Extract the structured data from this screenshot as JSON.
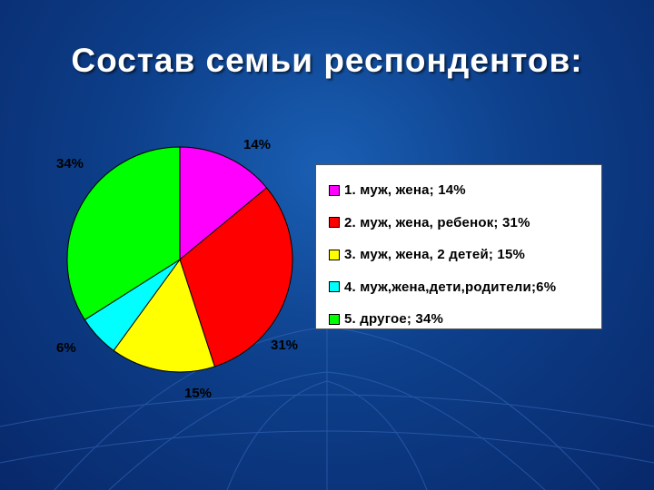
{
  "slide": {
    "title": "Состав семьи респондентов:"
  },
  "colors": {
    "background": "#0d3f8a",
    "magenta": "#ff00ff",
    "red": "#ff0000",
    "yellow": "#ffff00",
    "cyan": "#00ffff",
    "green": "#00ff00"
  },
  "chart_data": {
    "type": "pie",
    "title": "Состав семьи респондентов:",
    "legend_position": "right",
    "slices": [
      {
        "label": "1. муж, жена; 14%",
        "value": 14,
        "value_label": "14%",
        "color": "#ff00ff"
      },
      {
        "label": "2. муж, жена, ребенок; 31%",
        "value": 31,
        "value_label": "31%",
        "color": "#ff0000"
      },
      {
        "label": "3. муж, жена, 2 детей; 15%",
        "value": 15,
        "value_label": "15%",
        "color": "#ffff00"
      },
      {
        "label": "4. муж,жена,дети,родители;6%",
        "value": 6,
        "value_label": "6%",
        "color": "#00ffff"
      },
      {
        "label": "5. другое; 34%",
        "value": 34,
        "value_label": "34%",
        "color": "#00ff00"
      }
    ]
  }
}
